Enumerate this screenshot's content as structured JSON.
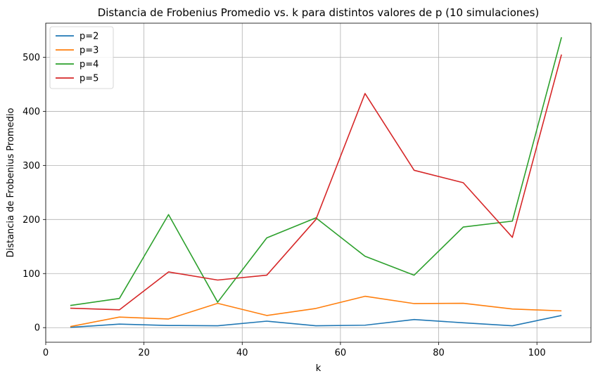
{
  "chart_data": {
    "type": "line",
    "title": "Distancia de Frobenius Promedio vs. k para distintos valores de p (10 simulaciones)",
    "xlabel": "k",
    "ylabel": "Distancia de Frobenius Promedio",
    "xlim": [
      0,
      111
    ],
    "ylim": [
      -27,
      563
    ],
    "xticks": [
      0,
      20,
      40,
      60,
      80,
      100
    ],
    "yticks": [
      0,
      100,
      200,
      300,
      400,
      500
    ],
    "grid": true,
    "legend_position": "top-left",
    "x": [
      5,
      15,
      25,
      35,
      45,
      55,
      65,
      75,
      85,
      95,
      105
    ],
    "series": [
      {
        "name": "p=2",
        "color": "#1f77b4",
        "values": [
          0.5,
          6.5,
          4,
          3.5,
          12,
          3.5,
          4.5,
          15,
          9,
          3.5,
          22.5
        ]
      },
      {
        "name": "p=3",
        "color": "#ff7f0e",
        "values": [
          2,
          19.5,
          16,
          45,
          22.5,
          35.5,
          58,
          44.5,
          45,
          34.5,
          31
        ]
      },
      {
        "name": "p=4",
        "color": "#2ca02c",
        "values": [
          41,
          54,
          209,
          47,
          166,
          203,
          132,
          97,
          186,
          197,
          537
        ]
      },
      {
        "name": "p=5",
        "color": "#d62728",
        "values": [
          36,
          33,
          103,
          88,
          97,
          200,
          433,
          291,
          268,
          167,
          505
        ]
      }
    ]
  }
}
